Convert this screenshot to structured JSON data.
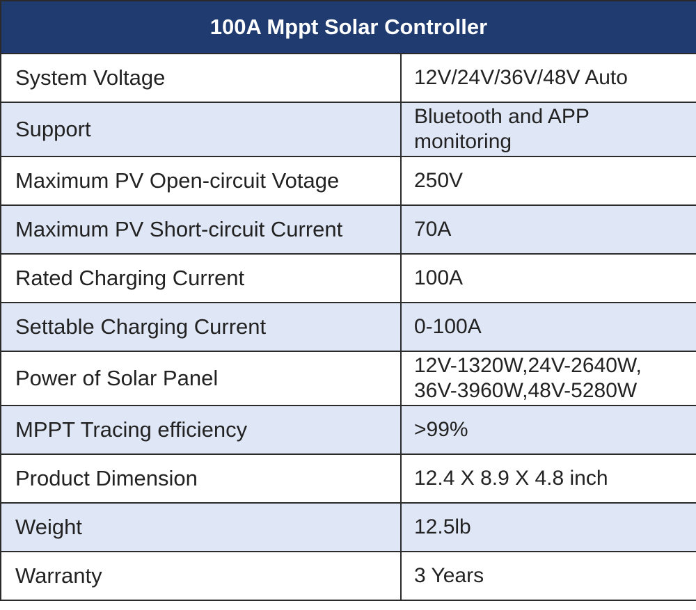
{
  "title": "100A Mppt Solar Controller",
  "rows": [
    {
      "label": "System Voltage",
      "value": "12V/24V/36V/48V Auto"
    },
    {
      "label": "Support",
      "value": "Bluetooth and APP monitoring"
    },
    {
      "label": "Maximum PV Open-circuit Votage",
      "value": "250V"
    },
    {
      "label": "Maximum PV Short-circuit Current",
      "value": "70A"
    },
    {
      "label": "Rated Charging Current",
      "value": "100A"
    },
    {
      "label": "Settable Charging Current",
      "value": "0-100A"
    },
    {
      "label": "Power of Solar Panel",
      "value": "12V-1320W,24V-2640W, 36V-3960W,48V-5280W"
    },
    {
      "label": "MPPT Tracing efficiency",
      "value": ">99%"
    },
    {
      "label": "Product Dimension",
      "value": "12.4 X 8.9 X 4.8 inch"
    },
    {
      "label": "Weight",
      "value": "12.5lb"
    },
    {
      "label": "Warranty",
      "value": "3 Years"
    }
  ],
  "colors": {
    "header_bg": "#1f3b70",
    "header_text": "#ffffff",
    "row_alt_bg": "#dfe6f5",
    "border": "#2a2a2a"
  }
}
